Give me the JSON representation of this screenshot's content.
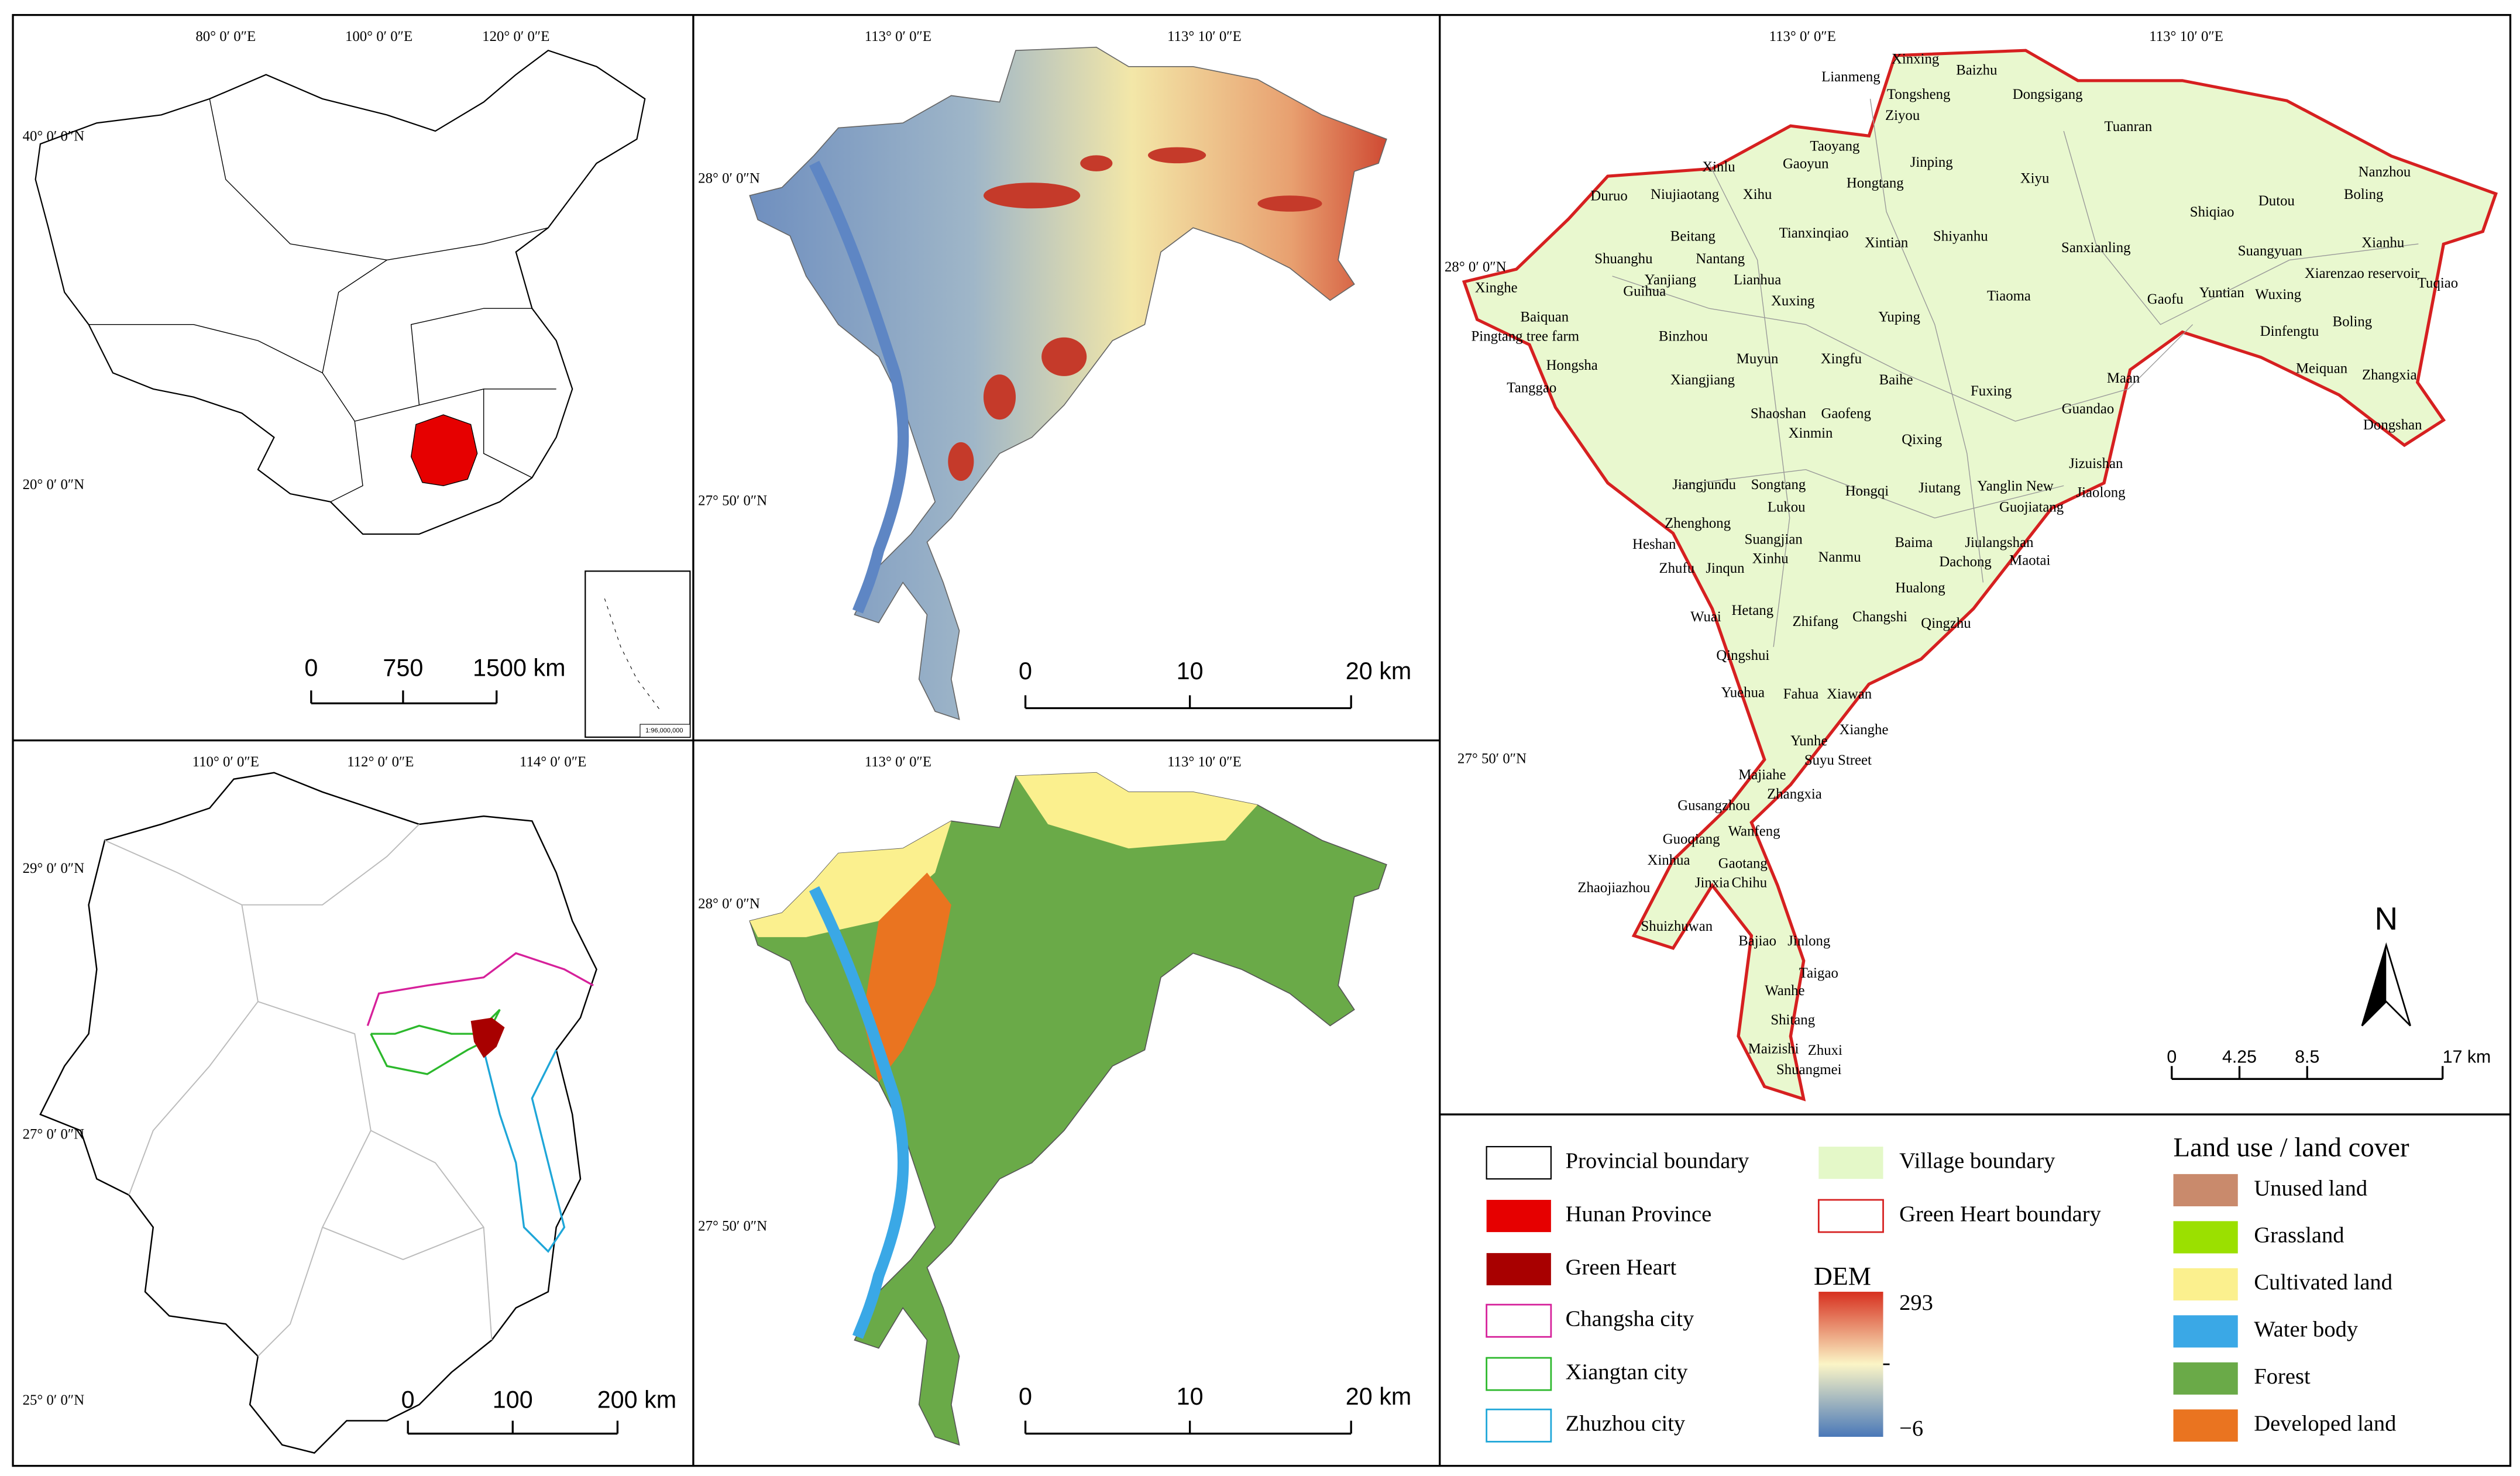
{
  "panels": {
    "china": {
      "lon_labels": [
        "80° 0′ 0″E",
        "100° 0′ 0″E",
        "120° 0′ 0″E"
      ],
      "lat_labels": [
        "40° 0′ 0″N",
        "20° 0′ 0″N"
      ],
      "scale_labels": [
        "0",
        "750",
        "1500 km"
      ],
      "inset_note": "1:96,000,000"
    },
    "dem": {
      "lon_labels": [
        "113° 0′ 0″E",
        "113° 10′ 0″E"
      ],
      "lat_labels": [
        "28° 0′ 0″N",
        "27° 50′ 0″N"
      ],
      "scale_labels": [
        "0",
        "10",
        "20 km"
      ]
    },
    "villages": {
      "lon_labels": [
        "113° 0′ 0″E",
        "113° 10′ 0″E"
      ],
      "lat_labels": [
        "28° 0′ 0″N",
        "27° 50′ 0″N"
      ],
      "north": "N",
      "scale_labels": [
        "0",
        "4.25",
        "8.5",
        "17 km"
      ],
      "village_labels": [
        "Lianmeng",
        "Xinxing",
        "Baizhu",
        "Tongsheng",
        "Dongsigang",
        "Ziyou",
        "Tuanran",
        "Taoyang",
        "Jinping",
        "Xinlu",
        "Gaoyun",
        "Duruo",
        "Niujiaotang",
        "Xihu",
        "Hongtang",
        "Xiyu",
        "Shiqiao",
        "Dutou",
        "Boling",
        "Nanzhou",
        "Beitang",
        "Tianxinqiao",
        "Xintian",
        "Shiyanhu",
        "Sanxianling",
        "Xianhu",
        "Suangyuan",
        "Shuanghu",
        "Nantang",
        "Yanjiang",
        "Lianhua",
        "Xiarenzao reservoir",
        "Tuqiao",
        "Xinghe",
        "Guihua",
        "Xuxing",
        "Tiaoma",
        "Gaofu",
        "Yuntian",
        "Wuxing",
        "Baiquan",
        "Yuping",
        "Boling",
        "Pingtang tree farm",
        "Binzhou",
        "Hongsha",
        "Muyun",
        "Xingfu",
        "Dinfengtu",
        "Meiquan",
        "Zhangxia",
        "Tanggao",
        "Xiangjiang",
        "Baihe",
        "Fuxing",
        "Maan",
        "Dongshan",
        "Shaoshan",
        "Gaofeng",
        "Guandao",
        "Xinmin",
        "Qixing",
        "Jizuishan",
        "Jiangjundu",
        "Songtang",
        "Hongqi",
        "Jiutang",
        "Yanglin New",
        "Jiaolong",
        "Lukou",
        "Guojiatang",
        "Zhenghong",
        "Suangjian",
        "Heshan",
        "Baima",
        "Jiulangshan",
        "Xinhu",
        "Nanmu",
        "Dachong",
        "Maotai",
        "Zhufu",
        "Jinqun",
        "Hualong",
        "Hetang",
        "Changshi",
        "Qingzhu",
        "Wuai",
        "Zhifang",
        "Qingshui",
        "Yuehua",
        "Fahua",
        "Xiawan",
        "Xianghe",
        "Yunhe",
        "Suyu Street",
        "Majiahe",
        "Zhangxia",
        "Gusangzhou",
        "Wanfeng",
        "Guoqiang",
        "Xinhua",
        "Gaotang",
        "Jinxia",
        "Chihu",
        "Zhaojiazhou",
        "Shuizhuwan",
        "Bajiao",
        "Jinlong",
        "Taigao",
        "Wanhe",
        "Shitang",
        "Maizishi",
        "Zhuxi",
        "Shuangmei"
      ]
    },
    "hunan": {
      "lon_labels": [
        "110° 0′ 0″E",
        "112° 0′ 0″E",
        "114° 0′ 0″E"
      ],
      "lat_labels": [
        "29° 0′ 0″N",
        "27° 0′ 0″N",
        "25° 0′ 0″N"
      ],
      "scale_labels": [
        "0",
        "100",
        "200 km"
      ]
    },
    "landuse": {
      "lon_labels": [
        "113° 0′ 0″E",
        "113° 10′ 0″E"
      ],
      "lat_labels": [
        "28° 0′ 0″N",
        "27° 50′ 0″N"
      ],
      "scale_labels": [
        "0",
        "10",
        "20 km"
      ]
    }
  },
  "legend": {
    "boundaries": [
      "Provincial boundary",
      "Hunan Province",
      "Green Heart",
      "Changsha city",
      "Xiangtan city",
      "Zhuzhou city",
      "Village boundary",
      "Green Heart boundary"
    ],
    "dem": {
      "title": "DEM",
      "max": "293",
      "min": "−6"
    },
    "landcover": {
      "title": "Land use / land cover",
      "classes": [
        {
          "label": "Unused land",
          "color": "#c98a6c"
        },
        {
          "label": "Grassland",
          "color": "#9be000"
        },
        {
          "label": "Cultivated land",
          "color": "#fbf08e"
        },
        {
          "label": "Water body",
          "color": "#3aa8e6"
        },
        {
          "label": "Forest",
          "color": "#6aaa48"
        },
        {
          "label": "Developed land",
          "color": "#ea7420"
        }
      ]
    }
  }
}
